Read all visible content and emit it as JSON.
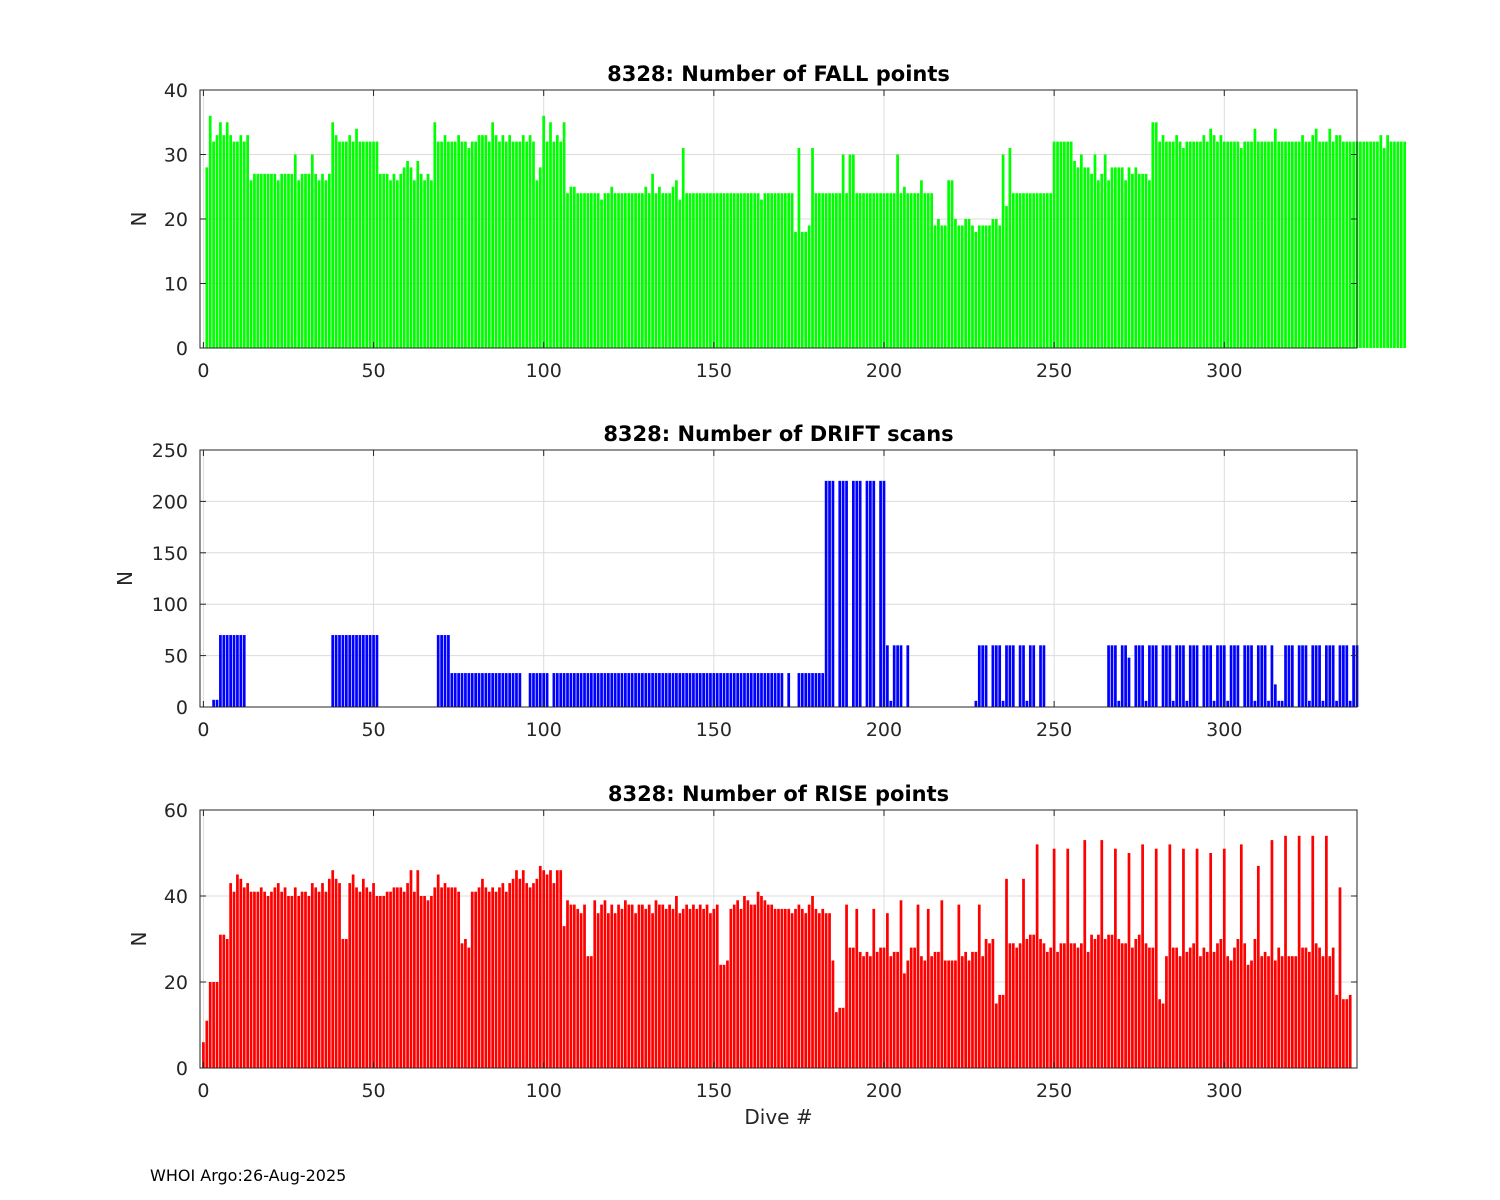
{
  "footer": {
    "text": "WHOI Argo:26-Aug-2025"
  },
  "colors": {
    "fall": "#00ff00",
    "drift": "#0000ff",
    "rise": "#ff0000",
    "grid": "#dcdcdc",
    "axis": "#262626"
  },
  "chart_data": [
    {
      "type": "bar",
      "title": "8328: Number of FALL points",
      "xlabel": "",
      "ylabel": "N",
      "xlim": [
        -1,
        339
      ],
      "ylim": [
        0,
        40
      ],
      "xticks": [
        0,
        50,
        100,
        150,
        200,
        250,
        300
      ],
      "yticks": [
        0,
        10,
        20,
        30,
        40
      ],
      "grid": true,
      "x_start": 1,
      "series": [
        {
          "name": "FALL",
          "color": "#00ff00",
          "values": [
            28,
            36,
            32,
            33,
            35,
            33,
            35,
            33,
            32,
            32,
            33,
            32,
            33,
            26,
            27,
            27,
            27,
            27,
            27,
            27,
            27,
            26,
            27,
            27,
            27,
            27,
            30,
            26,
            27,
            27,
            27,
            30,
            27,
            26,
            27,
            26,
            27,
            35,
            33,
            32,
            32,
            32,
            33,
            32,
            34,
            32,
            32,
            32,
            32,
            32,
            32,
            27,
            27,
            27,
            26,
            27,
            26,
            27,
            28,
            29,
            28,
            26,
            29,
            27,
            26,
            27,
            26,
            35,
            32,
            32,
            33,
            32,
            32,
            32,
            33,
            32,
            32,
            31,
            32,
            32,
            33,
            33,
            33,
            32,
            35,
            33,
            32,
            33,
            32,
            33,
            32,
            32,
            32,
            33,
            32,
            33,
            32,
            26,
            28,
            36,
            32,
            35,
            32,
            33,
            32,
            35,
            24,
            25,
            25,
            24,
            24,
            24,
            24,
            24,
            24,
            24,
            23,
            24,
            24,
            25,
            24,
            24,
            24,
            24,
            24,
            24,
            24,
            24,
            24,
            25,
            24,
            27,
            24,
            25,
            24,
            24,
            24,
            25,
            26,
            23,
            31,
            24,
            24,
            24,
            24,
            24,
            24,
            24,
            24,
            24,
            24,
            24,
            24,
            24,
            24,
            24,
            24,
            24,
            24,
            24,
            24,
            24,
            24,
            23,
            24,
            24,
            24,
            24,
            24,
            24,
            24,
            24,
            24,
            18,
            31,
            18,
            18,
            19,
            31,
            24,
            24,
            24,
            24,
            24,
            24,
            24,
            24,
            30,
            24,
            30,
            30,
            24,
            24,
            24,
            24,
            24,
            24,
            24,
            24,
            24,
            24,
            24,
            24,
            30,
            24,
            25,
            24,
            24,
            24,
            24,
            26,
            24,
            24,
            24,
            19,
            20,
            19,
            19,
            26,
            26,
            20,
            19,
            19,
            20,
            20,
            19,
            18,
            19,
            19,
            19,
            19,
            20,
            20,
            19,
            30,
            22,
            31,
            24,
            24,
            24,
            24,
            24,
            24,
            24,
            24,
            24,
            24,
            24,
            24,
            32,
            32,
            32,
            32,
            32,
            32,
            29,
            28,
            30,
            28,
            28,
            27,
            30,
            26,
            27,
            30,
            26,
            28,
            28,
            28,
            28,
            26,
            28,
            27,
            28,
            27,
            27,
            27,
            26,
            35,
            35,
            32,
            33,
            32,
            32,
            32,
            33,
            32,
            31,
            32,
            32,
            32,
            32,
            32,
            33,
            32,
            34,
            33,
            32,
            33,
            32,
            32,
            32,
            32,
            32,
            31,
            32,
            32,
            32,
            34,
            32,
            32,
            32,
            32,
            32,
            34,
            32,
            32,
            32,
            32,
            32,
            32,
            32,
            33,
            32,
            32,
            33,
            34,
            32,
            32,
            32,
            34,
            32,
            33,
            33,
            32,
            32,
            32,
            32,
            32,
            32,
            32,
            32,
            32,
            32,
            32,
            33,
            31,
            33,
            32,
            32,
            32,
            32,
            32
          ]
        }
      ]
    },
    {
      "type": "bar",
      "title": "8328: Number of DRIFT scans",
      "xlabel": "",
      "ylabel": "N",
      "xlim": [
        -1,
        339
      ],
      "ylim": [
        0,
        250
      ],
      "xticks": [
        0,
        50,
        100,
        150,
        200,
        250,
        300
      ],
      "yticks": [
        0,
        50,
        100,
        150,
        200,
        250
      ],
      "grid": true,
      "x_start": 1,
      "series": [
        {
          "name": "DRIFT",
          "color": "#0000ff",
          "values": [
            0,
            0,
            7,
            7,
            70,
            70,
            70,
            70,
            70,
            70,
            70,
            70,
            0,
            0,
            0,
            0,
            0,
            0,
            0,
            0,
            0,
            0,
            0,
            0,
            0,
            0,
            0,
            0,
            0,
            0,
            0,
            0,
            0,
            0,
            0,
            0,
            0,
            70,
            70,
            70,
            70,
            70,
            70,
            70,
            70,
            70,
            70,
            70,
            70,
            70,
            70,
            0,
            0,
            0,
            0,
            0,
            0,
            0,
            0,
            0,
            0,
            0,
            0,
            0,
            0,
            0,
            0,
            0,
            70,
            70,
            70,
            70,
            33,
            33,
            33,
            33,
            33,
            33,
            33,
            33,
            33,
            33,
            33,
            33,
            33,
            33,
            33,
            33,
            33,
            33,
            33,
            33,
            33,
            0,
            0,
            33,
            33,
            33,
            33,
            33,
            33,
            0,
            33,
            33,
            33,
            33,
            33,
            33,
            33,
            33,
            33,
            33,
            33,
            33,
            33,
            33,
            33,
            33,
            33,
            33,
            33,
            33,
            33,
            33,
            33,
            33,
            33,
            33,
            33,
            33,
            33,
            33,
            33,
            33,
            33,
            33,
            33,
            33,
            33,
            33,
            33,
            33,
            33,
            33,
            33,
            33,
            33,
            33,
            33,
            33,
            33,
            33,
            33,
            33,
            33,
            33,
            33,
            33,
            33,
            33,
            33,
            33,
            33,
            33,
            33,
            33,
            33,
            33,
            33,
            33,
            0,
            33,
            0,
            0,
            33,
            33,
            33,
            33,
            33,
            33,
            33,
            33,
            220,
            220,
            220,
            0,
            220,
            220,
            220,
            0,
            220,
            220,
            220,
            0,
            220,
            220,
            220,
            0,
            220,
            220,
            60,
            6,
            60,
            60,
            60,
            0,
            60,
            0,
            0,
            0,
            0,
            0,
            0,
            0,
            0,
            0,
            0,
            0,
            0,
            0,
            0,
            0,
            0,
            0,
            0,
            0,
            6,
            60,
            60,
            60,
            0,
            60,
            60,
            60,
            6,
            60,
            60,
            60,
            0,
            60,
            60,
            6,
            60,
            60,
            0,
            60,
            60,
            0,
            0,
            0,
            0,
            0,
            0,
            0,
            0,
            0,
            0,
            0,
            0,
            0,
            0,
            0,
            0,
            0,
            0,
            60,
            60,
            60,
            6,
            60,
            60,
            48,
            0,
            60,
            60,
            60,
            6,
            60,
            60,
            60,
            0,
            60,
            60,
            60,
            6,
            60,
            60,
            60,
            6,
            60,
            60,
            60,
            0,
            60,
            60,
            60,
            6,
            60,
            60,
            60,
            6,
            60,
            60,
            60,
            0,
            60,
            60,
            60,
            6,
            60,
            60,
            60,
            6,
            60,
            22,
            6,
            6,
            60,
            60,
            60,
            0,
            60,
            60,
            60,
            6,
            60,
            60,
            60,
            6,
            60,
            60,
            60,
            6,
            60,
            60,
            60,
            6,
            60,
            60
          ]
        }
      ]
    },
    {
      "type": "bar",
      "title": "8328: Number of RISE points",
      "xlabel": "Dive #",
      "ylabel": "N",
      "xlim": [
        -1,
        339
      ],
      "ylim": [
        0,
        60
      ],
      "xticks": [
        0,
        50,
        100,
        150,
        200,
        250,
        300
      ],
      "yticks": [
        0,
        20,
        40,
        60
      ],
      "grid": true,
      "x_start": 0,
      "series": [
        {
          "name": "RISE",
          "color": "#ff0000",
          "values": [
            6,
            11,
            20,
            20,
            20,
            31,
            31,
            30,
            43,
            41,
            45,
            44,
            42,
            43,
            41,
            41,
            41,
            42,
            41,
            40,
            41,
            42,
            43,
            41,
            42,
            40,
            40,
            42,
            40,
            41,
            41,
            40,
            43,
            42,
            41,
            43,
            41,
            44,
            46,
            44,
            43,
            30,
            30,
            43,
            45,
            42,
            41,
            44,
            42,
            41,
            43,
            40,
            40,
            40,
            41,
            41,
            42,
            42,
            42,
            41,
            43,
            46,
            41,
            46,
            40,
            40,
            39,
            40,
            42,
            45,
            42,
            43,
            42,
            42,
            42,
            41,
            29,
            30,
            28,
            41,
            41,
            42,
            44,
            42,
            41,
            42,
            41,
            42,
            43,
            41,
            43,
            44,
            46,
            44,
            46,
            43,
            42,
            43,
            44,
            47,
            46,
            45,
            46,
            43,
            46,
            46,
            33,
            39,
            38,
            38,
            37,
            36,
            38,
            26,
            26,
            39,
            36,
            38,
            39,
            36,
            38,
            36,
            38,
            37,
            39,
            38,
            38,
            36,
            38,
            38,
            37,
            38,
            36,
            39,
            38,
            38,
            37,
            38,
            37,
            40,
            36,
            37,
            38,
            37,
            38,
            37,
            38,
            37,
            38,
            36,
            37,
            38,
            24,
            24,
            25,
            37,
            38,
            39,
            37,
            40,
            39,
            38,
            38,
            41,
            40,
            39,
            38,
            38,
            37,
            37,
            37,
            37,
            37,
            36,
            37,
            38,
            37,
            36,
            38,
            40,
            37,
            36,
            37,
            36,
            36,
            25,
            13,
            14,
            14,
            38,
            28,
            28,
            37,
            27,
            26,
            27,
            26,
            37,
            27,
            28,
            28,
            36,
            26,
            27,
            27,
            39,
            22,
            25,
            28,
            28,
            38,
            26,
            25,
            37,
            26,
            27,
            27,
            39,
            25,
            25,
            25,
            25,
            38,
            26,
            27,
            25,
            27,
            27,
            38,
            26,
            30,
            29,
            30,
            15,
            17,
            17,
            44,
            29,
            29,
            28,
            29,
            44,
            30,
            31,
            31,
            52,
            30,
            29,
            27,
            28,
            51,
            27,
            29,
            29,
            51,
            29,
            29,
            28,
            29,
            53,
            27,
            31,
            30,
            31,
            53,
            30,
            31,
            31,
            51,
            30,
            29,
            29,
            50,
            28,
            30,
            31,
            52,
            29,
            28,
            28,
            51,
            16,
            15,
            26,
            52,
            28,
            28,
            26,
            51,
            27,
            28,
            29,
            51,
            26,
            28,
            27,
            50,
            27,
            29,
            30,
            51,
            26,
            25,
            28,
            30,
            52,
            29,
            24,
            25,
            30,
            47,
            26,
            27,
            26,
            53,
            25,
            28,
            26,
            54,
            26,
            26,
            26,
            54,
            28,
            28,
            27,
            54,
            29,
            28,
            26,
            54,
            26,
            28,
            17,
            42,
            16,
            16,
            17
          ]
        }
      ]
    }
  ]
}
